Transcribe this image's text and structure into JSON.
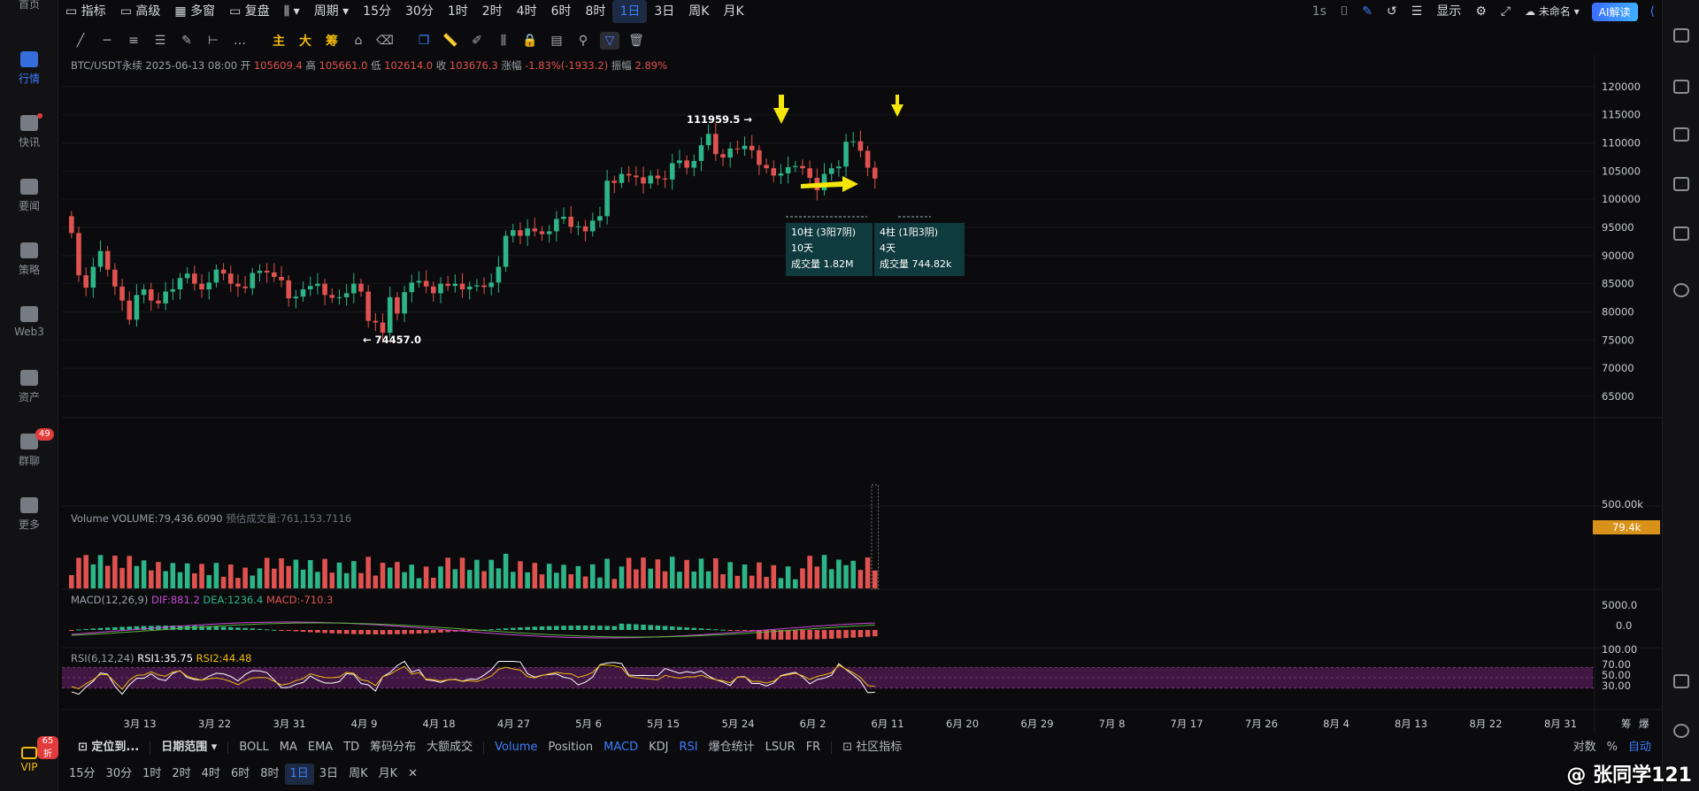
{
  "sidebar": {
    "items": [
      {
        "label": "首页",
        "icon": "home-icon"
      },
      {
        "label": "行情",
        "icon": "market-chart-icon",
        "active": true
      },
      {
        "label": "快讯",
        "icon": "flash-news-icon",
        "dot": true
      },
      {
        "label": "要闻",
        "icon": "news-icon"
      },
      {
        "label": "策略",
        "icon": "robot-icon"
      },
      {
        "label": "Web3",
        "icon": "web3-icon"
      },
      {
        "label": "资产",
        "icon": "wallet-icon"
      },
      {
        "label": "群聊",
        "icon": "chat-icon",
        "badge": "49"
      },
      {
        "label": "更多",
        "icon": "grid-icon"
      }
    ],
    "vip_label": "VIP",
    "vip_tag": "65折"
  },
  "topbar": {
    "indicator": "指标",
    "advanced": "高级",
    "multi_window": "多窗",
    "replay": "复盘",
    "period_label": "周期",
    "intervals": [
      "15分",
      "30分",
      "1时",
      "2时",
      "4时",
      "6时",
      "8时",
      "1日",
      "3日",
      "周K",
      "月K"
    ],
    "active_interval": "1日",
    "right_1s": "1s",
    "display": "显示",
    "unnamed": "未命名",
    "ai_button": "AI解读"
  },
  "drawbar": {
    "main": "主",
    "big": "大",
    "chips": "筹"
  },
  "legend": {
    "symbol": "BTC/USDT永续",
    "date": "2025-06-13 08:00",
    "open_label": "开",
    "open": "105609.4",
    "high_label": "高",
    "high": "105661.0",
    "low_label": "低",
    "low": "102614.0",
    "close_label": "收",
    "close": "103676.3",
    "change_label": "涨幅",
    "change": "-1.83%(-1933.2)",
    "amp_label": "振幅",
    "amp": "2.89%",
    "volume": "Volume VOLUME:79,436.6090",
    "est_volume": "预估成交量:761,153.7116",
    "macd_name": "MACD(12,26,9)",
    "macd_dif": "DIF:881.2",
    "macd_dea": "DEA:1236.4",
    "macd_val": "MACD:-710.3",
    "rsi_name": "RSI(6,12,24)",
    "rsi1": "RSI1:35.75",
    "rsi2": "RSI2:44.48"
  },
  "chart_data": {
    "type": "candlestick",
    "symbol": "BTC/USDT永续",
    "interval": "1日",
    "price_ticks": [
      120000,
      115000,
      110000,
      105000,
      100000,
      95000,
      90000,
      85000,
      80000,
      75000,
      70000,
      65000
    ],
    "x_ticks": [
      "3月 13",
      "3月 22",
      "3月 31",
      "4月 9",
      "4月 18",
      "4月 27",
      "5月 6",
      "5月 15",
      "5月 24",
      "6月 2",
      "6月 11",
      "6月 20",
      "6月 29",
      "7月 8",
      "7月 17",
      "7月 26",
      "8月 4",
      "8月 13",
      "8月 22",
      "8月 31"
    ],
    "annot_high": "111959.5 →",
    "annot_low": "← 74457.0",
    "box1": [
      "10柱 (3阳7阴)",
      "10天",
      "成交量 1.82M"
    ],
    "box2": [
      "4柱 (1阳3阴)",
      "4天",
      "成交量 744.82k"
    ],
    "volume_ticks": [
      "500.00k"
    ],
    "volume_current": "79.4k",
    "macd_ticks": [
      "5000.0",
      "0.0"
    ],
    "rsi_ticks": [
      "100.00",
      "70.00",
      "50.00",
      "30.00"
    ],
    "scale_footer": [
      "筹",
      "爆"
    ],
    "closes": [
      94000,
      86500,
      84300,
      88000,
      90800,
      87500,
      84500,
      82000,
      78600,
      83000,
      84000,
      82000,
      81500,
      83600,
      84000,
      86000,
      86800,
      85000,
      84000,
      85200,
      87500,
      86800,
      85000,
      84500,
      84200,
      86900,
      87300,
      87000,
      86200,
      85600,
      82400,
      82700,
      84000,
      84600,
      85000,
      83000,
      82500,
      82600,
      83300,
      85000,
      83600,
      78400,
      78100,
      76300,
      82600,
      79700,
      83500,
      85200,
      85500,
      84500,
      83300,
      85000,
      84600,
      85000,
      84000,
      84500,
      84700,
      84400,
      85200,
      88000,
      93500,
      94500,
      93500,
      94800,
      94300,
      93800,
      94300,
      96500,
      96900,
      95100,
      95200,
      94300,
      96200,
      97000,
      103300,
      102900,
      104500,
      104200,
      103900,
      102800,
      104200,
      103700,
      103500,
      106400,
      106900,
      105600,
      106800,
      109600,
      111600,
      108000,
      107400,
      109000,
      108900,
      109500,
      108700,
      106100,
      105500,
      104200,
      104600,
      105700,
      105900,
      105500,
      103800,
      101600,
      104500,
      105500,
      105800,
      110200,
      110300,
      108600,
      105600,
      103676
    ],
    "opens_offset_note": "",
    "rsi_band": [
      30,
      70
    ]
  },
  "bottom": {
    "locate": "定位到...",
    "date_range": "日期范围",
    "overlays": [
      "BOLL",
      "MA",
      "EMA",
      "TD",
      "筹码分布",
      "大额成交"
    ],
    "subs": [
      "Volume",
      "Position",
      "MACD",
      "KDJ",
      "RSI",
      "爆仓统计",
      "LSUR",
      "FR"
    ],
    "active_subs": [
      "Volume",
      "MACD",
      "RSI"
    ],
    "community": "社区指标",
    "right": [
      "对数",
      "%",
      "自动"
    ],
    "intervals": [
      "15分",
      "30分",
      "1时",
      "2时",
      "4时",
      "6时",
      "8时",
      "1日",
      "3日",
      "周K",
      "月K"
    ],
    "active_interval": "1日",
    "close_x": "✕"
  },
  "watermark": "@ 张同学121",
  "colors": {
    "up": "#2db487",
    "down": "#e0524f",
    "accent": "#3d7eff",
    "arrow": "#f5e60a",
    "rsi_band": "#4a1a4d",
    "box_bg": "#0f3a3e"
  }
}
